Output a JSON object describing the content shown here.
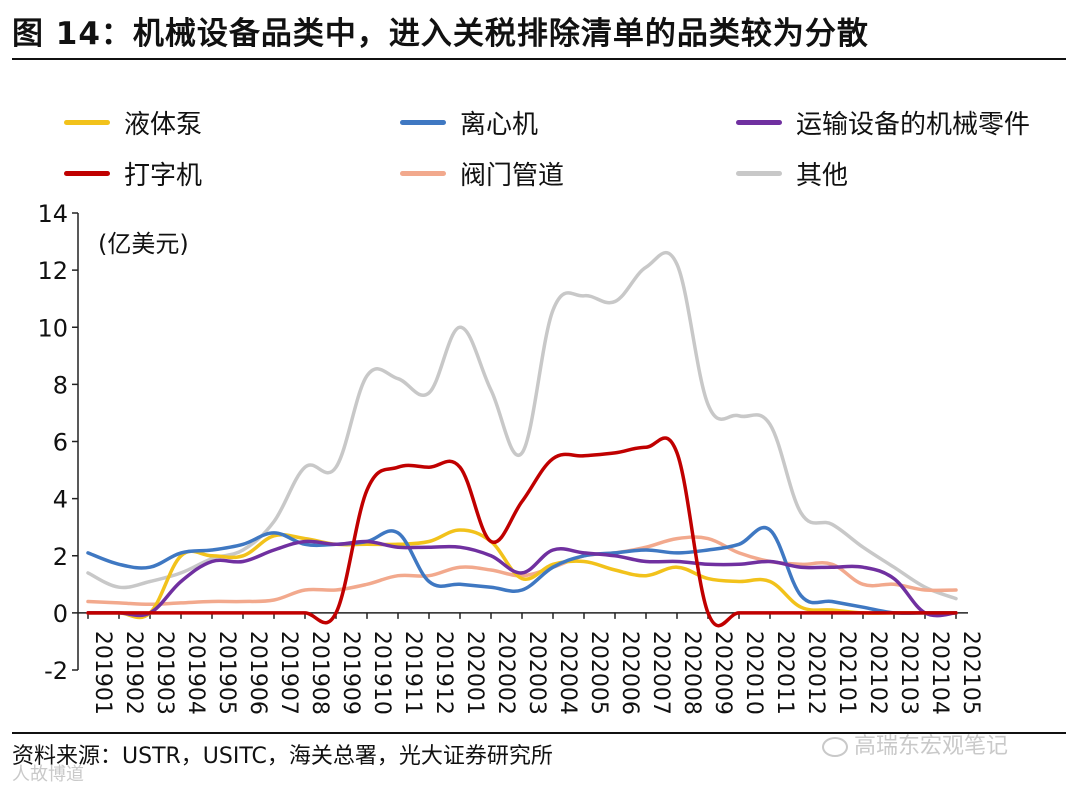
{
  "header": {
    "title": "图 14：机械设备品类中，进入关税排除清单的品类较为分散"
  },
  "footer": {
    "source": "资料来源：USTR，USITC，海关总署，光大证券研究所",
    "watermark_right": "高瑞东宏观笔记",
    "watermark_left": "人故博道"
  },
  "chart_data": {
    "type": "line",
    "unit_label": "(亿美元)",
    "ylim": [
      -2,
      14
    ],
    "yticks": [
      -2,
      0,
      2,
      4,
      6,
      8,
      10,
      12,
      14
    ],
    "grid": false,
    "legend_position": "top",
    "categories": [
      "201901",
      "201902",
      "201903",
      "201904",
      "201905",
      "201906",
      "201907",
      "201908",
      "201909",
      "201910",
      "201911",
      "201912",
      "202001",
      "202002",
      "202003",
      "202004",
      "202005",
      "202006",
      "202007",
      "202008",
      "202009",
      "202010",
      "202011",
      "202012",
      "202101",
      "202102",
      "202103",
      "202104",
      "202105"
    ],
    "series": [
      {
        "name": "液体泵",
        "color": "#f2c21b",
        "values": [
          0.0,
          0.0,
          0.0,
          2.0,
          2.0,
          2.0,
          2.7,
          2.6,
          2.4,
          2.4,
          2.4,
          2.5,
          2.9,
          2.5,
          1.2,
          1.7,
          1.8,
          1.5,
          1.3,
          1.6,
          1.2,
          1.1,
          1.1,
          0.2,
          0.1,
          0.0,
          0.0,
          0.0,
          0.0
        ]
      },
      {
        "name": "离心机",
        "color": "#3f78c2",
        "values": [
          2.1,
          1.7,
          1.6,
          2.1,
          2.2,
          2.4,
          2.8,
          2.4,
          2.4,
          2.5,
          2.8,
          1.1,
          1.0,
          0.9,
          0.8,
          1.6,
          2.0,
          2.1,
          2.2,
          2.1,
          2.2,
          2.4,
          2.9,
          0.6,
          0.4,
          0.2,
          0.0,
          0.0,
          0.0
        ]
      },
      {
        "name": "运输设备的机械零件",
        "color": "#7030a0",
        "values": [
          0.0,
          0.0,
          0.0,
          1.1,
          1.8,
          1.8,
          2.2,
          2.5,
          2.4,
          2.5,
          2.3,
          2.3,
          2.3,
          2.0,
          1.4,
          2.2,
          2.1,
          2.0,
          1.8,
          1.8,
          1.7,
          1.7,
          1.8,
          1.6,
          1.6,
          1.6,
          1.2,
          0.0,
          0.0
        ]
      },
      {
        "name": "打字机",
        "color": "#c00000",
        "values": [
          0.0,
          0.0,
          0.0,
          0.0,
          0.0,
          0.0,
          0.0,
          0.0,
          0.0,
          4.3,
          5.1,
          5.1,
          5.1,
          2.5,
          3.9,
          5.4,
          5.5,
          5.6,
          5.8,
          5.6,
          0.0,
          0.0,
          0.0,
          0.0,
          0.0,
          0.0,
          0.0,
          0.0,
          0.0
        ]
      },
      {
        "name": "阀门管道",
        "color": "#f2a98d",
        "values": [
          0.4,
          0.35,
          0.3,
          0.35,
          0.4,
          0.4,
          0.45,
          0.8,
          0.8,
          1.0,
          1.3,
          1.3,
          1.6,
          1.5,
          1.3,
          1.6,
          2.0,
          2.1,
          2.3,
          2.6,
          2.6,
          2.1,
          1.8,
          1.7,
          1.7,
          1.0,
          1.0,
          0.8,
          0.8
        ]
      },
      {
        "name": "其他",
        "color": "#c8c8c8",
        "values": [
          1.4,
          0.9,
          1.1,
          1.4,
          1.9,
          2.2,
          3.2,
          5.1,
          5.1,
          8.3,
          8.2,
          7.7,
          10.0,
          7.8,
          5.6,
          10.6,
          11.1,
          10.9,
          12.1,
          12.2,
          7.3,
          6.9,
          6.6,
          3.5,
          3.1,
          2.3,
          1.6,
          0.9,
          0.5
        ]
      }
    ]
  }
}
